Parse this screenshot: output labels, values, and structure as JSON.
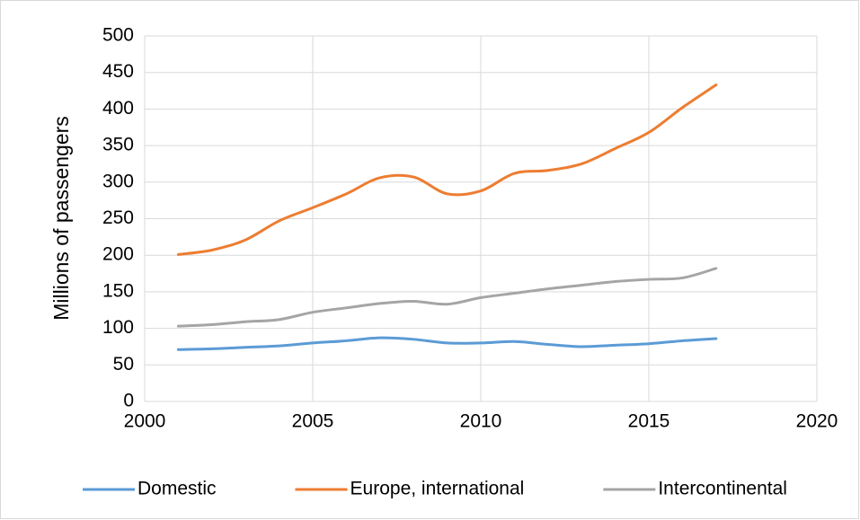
{
  "chart_data": {
    "type": "line",
    "y_label": "Millions of passengers",
    "x": [
      2001,
      2002,
      2003,
      2004,
      2005,
      2006,
      2007,
      2008,
      2009,
      2010,
      2011,
      2012,
      2013,
      2014,
      2015,
      2016,
      2017
    ],
    "series": [
      {
        "name": "Domestic",
        "color": "#5b9bd5",
        "values": [
          71,
          72,
          74,
          76,
          80,
          83,
          87,
          85,
          80,
          80,
          82,
          78,
          75,
          77,
          79,
          83,
          86
        ]
      },
      {
        "name": "Europe, international",
        "color": "#ed7d31",
        "values": [
          201,
          207,
          221,
          247,
          265,
          284,
          306,
          307,
          284,
          288,
          312,
          316,
          325,
          346,
          368,
          402,
          433
        ]
      },
      {
        "name": "Intercontinental",
        "color": "#a5a5a5",
        "values": [
          103,
          105,
          109,
          112,
          122,
          128,
          134,
          137,
          133,
          142,
          148,
          154,
          159,
          164,
          167,
          169,
          182
        ]
      }
    ],
    "xlim": [
      2000,
      2020
    ],
    "xticks": [
      2000,
      2005,
      2010,
      2015,
      2020
    ],
    "ylim": [
      0,
      500
    ],
    "yticks": [
      0,
      50,
      100,
      150,
      200,
      250,
      300,
      350,
      400,
      450,
      500
    ],
    "grid": true,
    "smooth": true,
    "legend": "bottom"
  }
}
